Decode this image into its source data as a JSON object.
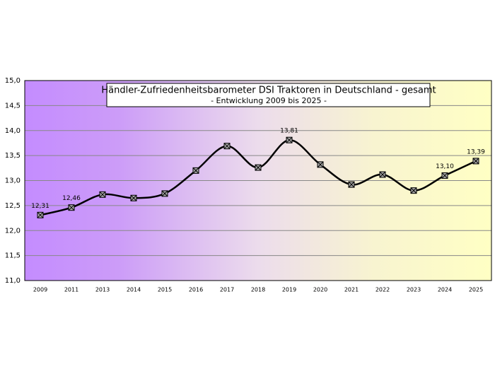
{
  "chart_data": {
    "type": "line",
    "title": "Händler-Zufriedenheitsbarometer DSI Traktoren in Deutschland - gesamt",
    "subtitle": "- Entwicklung 2009 bis 2025 -",
    "categories": [
      "2009",
      "2011",
      "2013",
      "2014",
      "2015",
      "2016",
      "2017",
      "2018",
      "2019",
      "2020",
      "2021",
      "2022",
      "2023",
      "2024",
      "2025"
    ],
    "values": [
      12.31,
      12.46,
      12.72,
      12.65,
      12.74,
      13.2,
      13.69,
      13.26,
      13.81,
      13.32,
      12.92,
      13.12,
      12.8,
      13.1,
      13.39
    ],
    "value_labels": [
      "12,31",
      "12,46",
      null,
      null,
      null,
      null,
      null,
      null,
      "13,81",
      null,
      null,
      null,
      null,
      "13,10",
      "13,39"
    ],
    "color": "#000000",
    "ylim": [
      11,
      15
    ],
    "yticks": [
      {
        "value": 11,
        "label": "11,0"
      },
      {
        "value": 11.5,
        "label": "11,5"
      },
      {
        "value": 12,
        "label": "12,0"
      },
      {
        "value": 12.5,
        "label": "12,5"
      },
      {
        "value": 13,
        "label": "13,0"
      },
      {
        "value": 13.5,
        "label": "13,5"
      },
      {
        "value": 14,
        "label": "14,0"
      },
      {
        "value": 14.5,
        "label": "14,5"
      },
      {
        "value": 15,
        "label": "15,0"
      }
    ],
    "grid": true
  }
}
